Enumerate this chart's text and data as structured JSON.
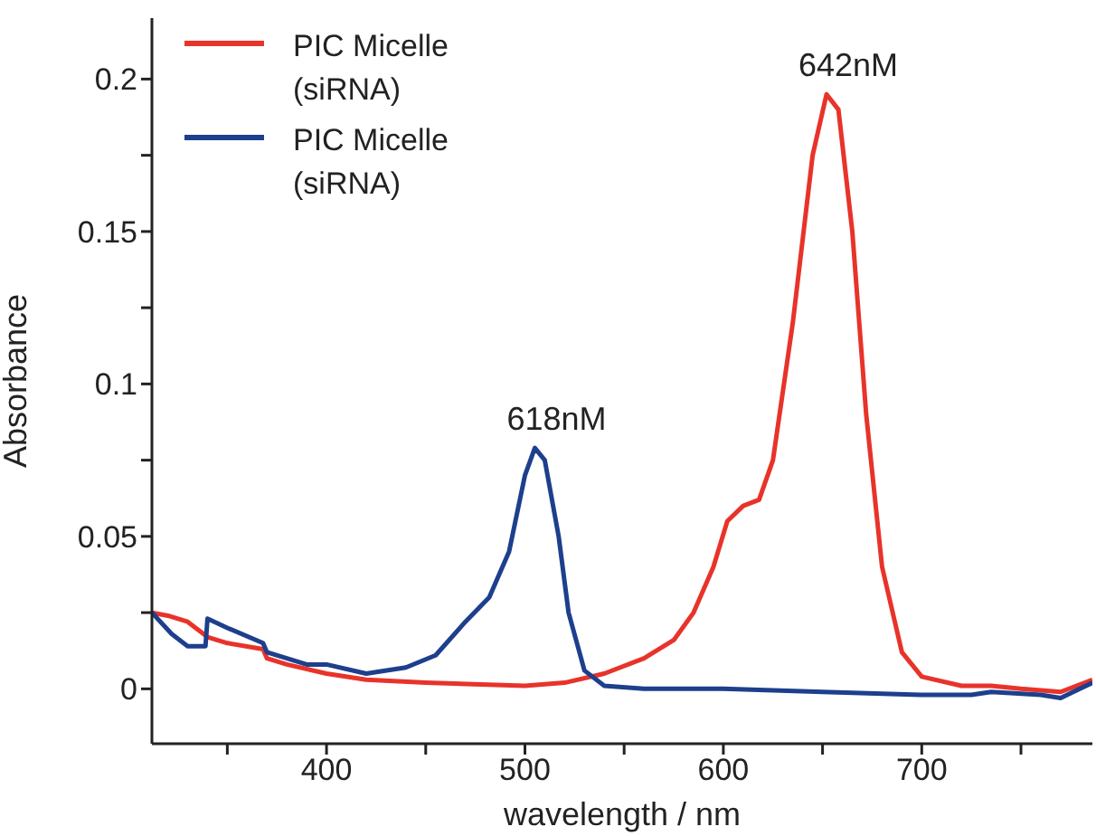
{
  "chart_data": {
    "type": "line",
    "xlabel": "wavelength / nm",
    "ylabel": "Absorbance",
    "xlim": [
      312,
      786
    ],
    "ylim": [
      -0.018,
      0.22
    ],
    "xticks": [
      {
        "value": 350,
        "label": null
      },
      400,
      {
        "value": 450,
        "label": null
      },
      500,
      {
        "value": 550,
        "label": null
      },
      600,
      {
        "value": 650,
        "label": null
      },
      700,
      {
        "value": 750,
        "label": null
      }
    ],
    "yticks": [
      0,
      {
        "value": 0.025,
        "label": null
      },
      0.05,
      {
        "value": 0.075,
        "label": null
      },
      0.1,
      {
        "value": 0.125,
        "label": null
      },
      0.15,
      {
        "value": 0.175,
        "label": null
      },
      0.2
    ],
    "legend": "top left",
    "grid": false,
    "marker": "none",
    "line_style": "solid",
    "annotations": [
      {
        "text": "618nM",
        "x": 505,
        "y": 0.079
      },
      {
        "text": "642nM",
        "x": 652,
        "y": 0.195
      }
    ],
    "series": [
      {
        "name": "PIC Micelle (siRNA)",
        "color": "#e8332a",
        "x": [
          312,
          320,
          330,
          340,
          350,
          368,
          370,
          380,
          400,
          420,
          450,
          500,
          520,
          540,
          560,
          575,
          585,
          595,
          602,
          610,
          618,
          625,
          635,
          645,
          652,
          658,
          665,
          672,
          680,
          690,
          700,
          720,
          735,
          750,
          770,
          786
        ],
        "values": [
          0.025,
          0.024,
          0.022,
          0.017,
          0.015,
          0.013,
          0.01,
          0.008,
          0.005,
          0.003,
          0.002,
          0.001,
          0.002,
          0.005,
          0.01,
          0.016,
          0.025,
          0.04,
          0.055,
          0.06,
          0.062,
          0.075,
          0.12,
          0.175,
          0.195,
          0.19,
          0.15,
          0.09,
          0.04,
          0.012,
          0.004,
          0.001,
          0.001,
          0,
          -0.001,
          0.003
        ]
      },
      {
        "name": "PIC Micelle (siRNA)",
        "color": "#1d3f8c",
        "x": [
          312,
          322,
          330,
          339,
          340,
          350,
          368,
          370,
          390,
          400,
          420,
          440,
          455,
          470,
          482,
          492,
          500,
          505,
          510,
          517,
          522,
          530,
          540,
          560,
          600,
          650,
          700,
          725,
          735,
          760,
          770,
          786
        ],
        "values": [
          0.025,
          0.018,
          0.014,
          0.014,
          0.023,
          0.02,
          0.015,
          0.012,
          0.008,
          0.008,
          0.005,
          0.007,
          0.011,
          0.022,
          0.03,
          0.045,
          0.07,
          0.079,
          0.075,
          0.05,
          0.025,
          0.006,
          0.001,
          0,
          0,
          -0.001,
          -0.002,
          -0.002,
          -0.001,
          -0.002,
          -0.003,
          0.002
        ]
      }
    ]
  }
}
